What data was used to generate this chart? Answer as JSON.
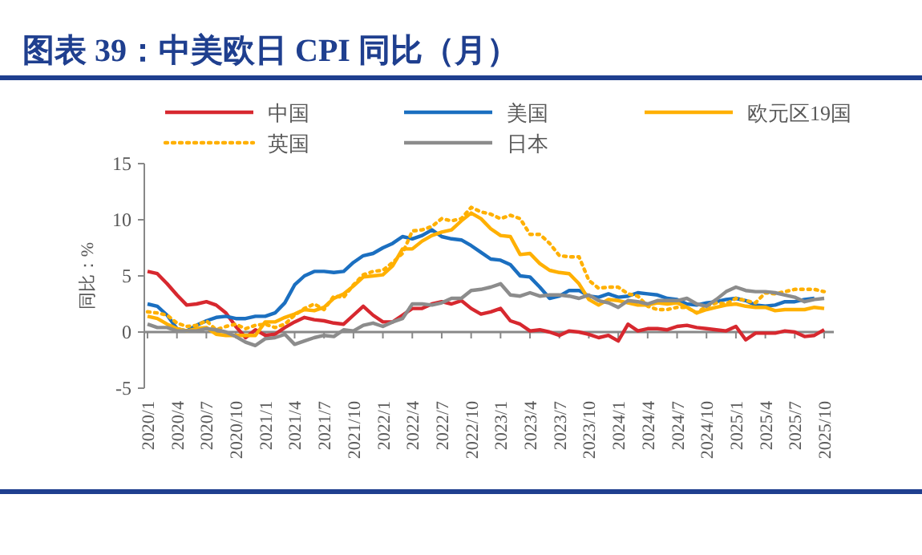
{
  "chart_data": {
    "type": "line",
    "title": "图表 39：中美欧日 CPI 同比（月）",
    "ylabel": "同比：%",
    "categories": [
      "2020/1",
      null,
      null,
      "2020/4",
      null,
      null,
      "2020/7",
      null,
      null,
      "2020/10",
      null,
      null,
      "2021/1",
      null,
      null,
      "2021/4",
      null,
      null,
      "2021/7",
      null,
      null,
      "2021/10",
      null,
      null,
      "2022/1",
      null,
      null,
      "2022/4",
      null,
      null,
      "2022/7",
      null,
      null,
      "2022/10",
      null,
      null,
      "2023/1",
      null,
      null,
      "2023/4",
      null,
      null,
      "2023/7",
      null,
      null,
      "2023/10",
      null,
      null,
      "2024/1",
      null,
      null,
      "2024/4",
      null,
      null,
      "2024/7",
      null,
      null,
      "2024/10",
      null,
      null,
      "2025/1",
      null,
      null,
      "2025/4",
      null,
      null,
      "2025/7",
      null,
      null,
      "2025/10"
    ],
    "ylim": [
      -5,
      15
    ],
    "yticks": [
      -5,
      0,
      5,
      10,
      15
    ],
    "legend": "top",
    "marker": "none",
    "series": [
      {
        "name": "中国",
        "color": "#d7282f",
        "line_style": "solid",
        "values": [
          5.4,
          5.2,
          4.3,
          3.3,
          2.4,
          2.5,
          2.7,
          2.4,
          1.7,
          0.5,
          -0.5,
          0.2,
          -0.3,
          -0.2,
          0.4,
          0.9,
          1.3,
          1.1,
          1.0,
          0.8,
          0.7,
          1.5,
          2.3,
          1.5,
          0.9,
          0.9,
          1.5,
          2.1,
          2.1,
          2.5,
          2.7,
          2.5,
          2.8,
          2.1,
          1.6,
          1.8,
          2.1,
          1.0,
          0.7,
          0.1,
          0.2,
          0.0,
          -0.3,
          0.1,
          0.0,
          -0.2,
          -0.5,
          -0.3,
          -0.8,
          0.7,
          0.1,
          0.3,
          0.3,
          0.2,
          0.5,
          0.6,
          0.4,
          0.3,
          0.2,
          0.1,
          0.5,
          -0.7,
          -0.1,
          -0.1,
          -0.1,
          0.1,
          0.0,
          -0.4,
          -0.3,
          0.2
        ]
      },
      {
        "name": "美国",
        "color": "#1b6fc0",
        "line_style": "solid",
        "values": [
          2.5,
          2.3,
          1.5,
          0.3,
          0.1,
          0.6,
          1.0,
          1.3,
          1.4,
          1.2,
          1.2,
          1.4,
          1.4,
          1.7,
          2.6,
          4.2,
          5.0,
          5.4,
          5.4,
          5.3,
          5.4,
          6.2,
          6.8,
          7.0,
          7.5,
          7.9,
          8.5,
          8.3,
          8.6,
          9.1,
          8.5,
          8.3,
          8.2,
          7.7,
          7.1,
          6.5,
          6.4,
          6.0,
          5.0,
          4.9,
          4.0,
          3.0,
          3.2,
          3.7,
          3.7,
          3.2,
          3.1,
          3.4,
          3.1,
          3.2,
          3.5,
          3.4,
          3.3,
          3.0,
          2.9,
          2.5,
          2.4,
          2.6,
          2.7,
          2.9,
          3.0,
          2.8,
          2.4,
          2.3,
          2.4,
          2.7,
          2.7,
          2.9,
          3.0,
          null
        ]
      },
      {
        "name": "欧元区19国",
        "color": "#ffb000",
        "line_style": "solid",
        "values": [
          1.4,
          1.2,
          0.7,
          0.3,
          0.1,
          0.3,
          0.4,
          -0.2,
          -0.3,
          -0.3,
          -0.3,
          -0.3,
          0.9,
          0.9,
          1.3,
          1.6,
          2.0,
          1.9,
          2.2,
          3.0,
          3.4,
          4.1,
          4.9,
          5.0,
          5.1,
          5.9,
          7.4,
          7.4,
          8.1,
          8.6,
          8.9,
          9.1,
          9.9,
          10.6,
          10.1,
          9.2,
          8.6,
          8.5,
          6.9,
          7.0,
          6.1,
          5.5,
          5.3,
          5.2,
          4.3,
          2.9,
          2.4,
          2.9,
          2.8,
          2.6,
          2.4,
          2.4,
          2.6,
          2.5,
          2.6,
          2.2,
          1.7,
          2.0,
          2.2,
          2.4,
          2.5,
          2.3,
          2.2,
          2.2,
          1.9,
          2.0,
          2.0,
          2.0,
          2.2,
          2.1
        ]
      },
      {
        "name": "英国",
        "color": "#ffb000",
        "line_style": "dotted",
        "values": [
          1.8,
          1.7,
          1.5,
          0.8,
          0.5,
          0.6,
          1.0,
          0.2,
          0.5,
          0.7,
          0.3,
          0.6,
          0.7,
          0.4,
          0.7,
          1.5,
          2.1,
          2.5,
          2.0,
          3.2,
          3.1,
          4.2,
          5.1,
          5.4,
          5.5,
          6.2,
          7.0,
          9.0,
          9.1,
          9.4,
          10.1,
          9.9,
          10.1,
          11.1,
          10.7,
          10.5,
          10.1,
          10.4,
          10.1,
          8.7,
          8.7,
          7.9,
          6.8,
          6.7,
          6.7,
          4.6,
          3.9,
          4.0,
          4.0,
          3.4,
          3.2,
          2.3,
          2.0,
          2.0,
          2.2,
          2.2,
          1.7,
          2.3,
          2.6,
          2.5,
          3.0,
          2.8,
          2.6,
          3.5,
          3.4,
          3.6,
          3.8,
          3.8,
          3.8,
          3.6
        ]
      },
      {
        "name": "日本",
        "color": "#8c8c8c",
        "line_style": "solid",
        "values": [
          0.7,
          0.4,
          0.4,
          0.1,
          0.1,
          0.1,
          0.3,
          0.2,
          0.0,
          -0.4,
          -0.9,
          -1.2,
          -0.6,
          -0.5,
          -0.2,
          -1.1,
          -0.8,
          -0.5,
          -0.3,
          -0.4,
          0.2,
          0.1,
          0.6,
          0.8,
          0.5,
          0.9,
          1.2,
          2.5,
          2.5,
          2.4,
          2.6,
          3.0,
          3.0,
          3.7,
          3.8,
          4.0,
          4.3,
          3.3,
          3.2,
          3.5,
          3.2,
          3.3,
          3.3,
          3.2,
          3.0,
          3.3,
          2.8,
          2.6,
          2.2,
          2.8,
          2.7,
          2.5,
          2.8,
          2.8,
          2.8,
          3.0,
          2.5,
          2.3,
          2.9,
          3.6,
          4.0,
          3.7,
          3.6,
          3.6,
          3.5,
          3.3,
          3.1,
          2.7,
          2.9,
          3.0
        ]
      }
    ]
  }
}
